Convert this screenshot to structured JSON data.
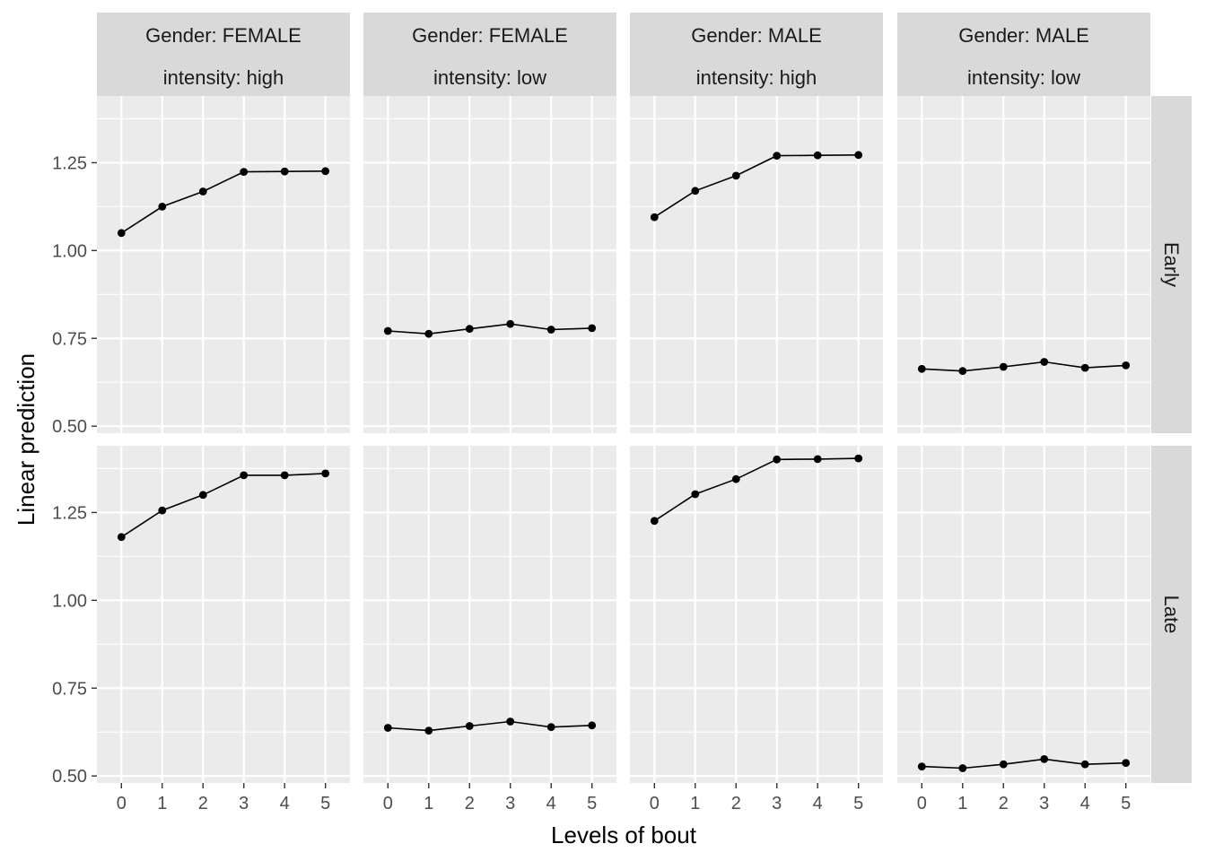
{
  "chart_data": {
    "type": "line",
    "xlabel": "Levels of bout",
    "ylabel": "Linear prediction",
    "x_ticks": [
      "0",
      "1",
      "2",
      "3",
      "4",
      "5"
    ],
    "y_ticks": [
      "0.50",
      "0.75",
      "1.00",
      "1.25"
    ],
    "ylim": [
      0.48,
      1.44
    ],
    "xlim": [
      -0.6,
      5.6
    ],
    "grid": true,
    "column_strips": [
      {
        "line1": "Gender: FEMALE",
        "line2": "intensity: high"
      },
      {
        "line1": "Gender: FEMALE",
        "line2": "intensity: low"
      },
      {
        "line1": "Gender: MALE",
        "line2": "intensity: high"
      },
      {
        "line1": "Gender: MALE",
        "line2": "intensity: low"
      }
    ],
    "row_strips": [
      "Early",
      "Late"
    ],
    "panels": [
      {
        "row": 0,
        "col": 0,
        "x": [
          0,
          1,
          2,
          3,
          4,
          5
        ],
        "y": [
          1.05,
          1.125,
          1.168,
          1.224,
          1.225,
          1.226
        ]
      },
      {
        "row": 0,
        "col": 1,
        "x": [
          0,
          1,
          2,
          3,
          4,
          5
        ],
        "y": [
          0.771,
          0.763,
          0.777,
          0.791,
          0.775,
          0.779
        ]
      },
      {
        "row": 0,
        "col": 2,
        "x": [
          0,
          1,
          2,
          3,
          4,
          5
        ],
        "y": [
          1.095,
          1.17,
          1.213,
          1.27,
          1.271,
          1.272
        ]
      },
      {
        "row": 0,
        "col": 3,
        "x": [
          0,
          1,
          2,
          3,
          4,
          5
        ],
        "y": [
          0.663,
          0.657,
          0.669,
          0.683,
          0.666,
          0.673
        ]
      },
      {
        "row": 1,
        "col": 0,
        "x": [
          0,
          1,
          2,
          3,
          4,
          5
        ],
        "y": [
          1.18,
          1.256,
          1.3,
          1.356,
          1.356,
          1.361
        ]
      },
      {
        "row": 1,
        "col": 1,
        "x": [
          0,
          1,
          2,
          3,
          4,
          5
        ],
        "y": [
          0.637,
          0.629,
          0.642,
          0.655,
          0.639,
          0.644
        ]
      },
      {
        "row": 1,
        "col": 2,
        "x": [
          0,
          1,
          2,
          3,
          4,
          5
        ],
        "y": [
          1.226,
          1.302,
          1.345,
          1.401,
          1.402,
          1.404
        ]
      },
      {
        "row": 1,
        "col": 3,
        "x": [
          0,
          1,
          2,
          3,
          4,
          5
        ],
        "y": [
          0.527,
          0.522,
          0.533,
          0.548,
          0.533,
          0.537
        ]
      }
    ],
    "colors": {
      "panel_background": "#EBEBEB",
      "strip_background": "#D9D9D9",
      "grid": "#FFFFFF",
      "line": "#000000",
      "point": "#000000"
    }
  }
}
